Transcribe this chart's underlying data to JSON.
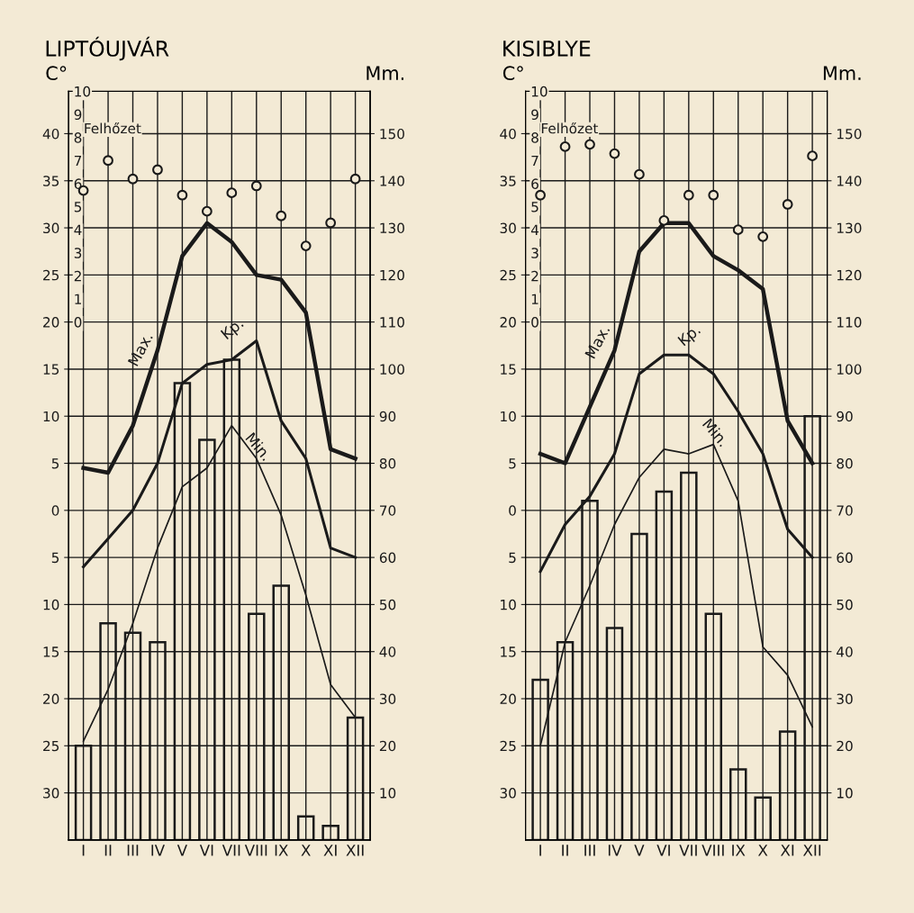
{
  "chart_data": [
    {
      "type": "line",
      "title": "LIPTÓUJVÁR",
      "ylabel": "C°",
      "y2label": "Mm.",
      "categories": [
        "I",
        "II",
        "III",
        "IV",
        "V",
        "VI",
        "VII",
        "VIII",
        "IX",
        "X",
        "XI",
        "XII"
      ],
      "ylim": [
        -35,
        44.5
      ],
      "yticks": [
        {
          "value": -30,
          "label": "30"
        },
        {
          "value": -25,
          "label": "25"
        },
        {
          "value": -20,
          "label": "20"
        },
        {
          "value": -15,
          "label": "15"
        },
        {
          "value": -10,
          "label": "10"
        },
        {
          "value": -5,
          "label": "5"
        },
        0,
        5,
        10,
        15,
        20,
        25,
        30,
        35,
        40
      ],
      "y2lim": [
        0,
        159
      ],
      "y2ticks": [
        10,
        20,
        30,
        40,
        50,
        60,
        70,
        80,
        90,
        100,
        110,
        120,
        130,
        140,
        150
      ],
      "y3lim": [
        -22.45,
        10
      ],
      "y3ticks": [
        0,
        1,
        2,
        3,
        4,
        5,
        6,
        7,
        8,
        9,
        10
      ],
      "grid": true,
      "legend": false,
      "series": [
        {
          "name": "Max.",
          "color": "#1a1a1a",
          "marker": "none",
          "values": [
            4.5,
            4,
            9,
            17,
            27,
            30.5,
            28.5,
            25,
            24.5,
            21,
            6.5,
            5.5
          ]
        },
        {
          "name": "Kp.",
          "color": "#1a1a1a",
          "marker": "none",
          "values": [
            -6,
            -3,
            0,
            5,
            13.5,
            15.5,
            16,
            18,
            9.5,
            5.5,
            -4,
            -5
          ]
        },
        {
          "name": "Min.",
          "color": "#1a1a1a",
          "marker": "none",
          "values": [
            -24.5,
            -19,
            -12,
            -4,
            2.5,
            4.5,
            9,
            5.5,
            -0.5,
            -9,
            -18.5,
            -22
          ]
        },
        {
          "type": "bar",
          "axis": "y2",
          "color": "#1a1a1a",
          "values": [
            20,
            46,
            44,
            42,
            97,
            85,
            102,
            48,
            54,
            5,
            3,
            26
          ]
        },
        {
          "name": "Felhőzet",
          "type": "scatter",
          "axis": "y3",
          "color": "#1a1a1a",
          "marker": "circle",
          "values": [
            5.7,
            7.0,
            6.2,
            6.6,
            5.5,
            4.8,
            5.6,
            5.9,
            4.6,
            3.3,
            4.3,
            6.2
          ]
        }
      ]
    },
    {
      "type": "line",
      "title": "KISIBLYE",
      "ylabel": "C°",
      "y2label": "Mm.",
      "categories": [
        "I",
        "II",
        "III",
        "IV",
        "V",
        "VI",
        "VII",
        "VIII",
        "IX",
        "X",
        "XI",
        "XII"
      ],
      "ylim": [
        -35,
        44.5
      ],
      "yticks": [
        {
          "value": -30,
          "label": "30"
        },
        {
          "value": -25,
          "label": "25"
        },
        {
          "value": -20,
          "label": "20"
        },
        {
          "value": -15,
          "label": "15"
        },
        {
          "value": -10,
          "label": "10"
        },
        {
          "value": -5,
          "label": "5"
        },
        0,
        5,
        10,
        15,
        20,
        25,
        30,
        35,
        40
      ],
      "y2lim": [
        0,
        159
      ],
      "y2ticks": [
        10,
        20,
        30,
        40,
        50,
        60,
        70,
        80,
        90,
        100,
        110,
        120,
        130,
        140,
        150
      ],
      "y3lim": [
        -22.45,
        10
      ],
      "y3ticks": [
        0,
        1,
        2,
        3,
        4,
        5,
        6,
        7,
        8,
        9,
        10
      ],
      "grid": true,
      "legend": false,
      "series": [
        {
          "name": "Max.",
          "color": "#1a1a1a",
          "marker": "none",
          "values": [
            6,
            5,
            11,
            17,
            27.5,
            30.5,
            30.5,
            27,
            25.5,
            23.5,
            9.5,
            5
          ]
        },
        {
          "name": "Kp.",
          "color": "#1a1a1a",
          "marker": "none",
          "values": [
            -6.5,
            -1.5,
            1.5,
            6,
            14.5,
            16.5,
            16.5,
            14.5,
            10.5,
            6,
            -2,
            -5
          ]
        },
        {
          "name": "Min.",
          "color": "#1a1a1a",
          "marker": "none",
          "values": [
            -25,
            -14,
            -8,
            -1.5,
            3.5,
            6.5,
            6,
            7,
            1,
            -14.5,
            -17.5,
            -23
          ]
        },
        {
          "type": "bar",
          "axis": "y2",
          "color": "#1a1a1a",
          "values": [
            34,
            42,
            72,
            45,
            65,
            74,
            78,
            48,
            15,
            9,
            23,
            90
          ]
        },
        {
          "name": "Felhőzet",
          "type": "scatter",
          "axis": "y3",
          "color": "#1a1a1a",
          "marker": "circle",
          "values": [
            5.5,
            7.6,
            7.7,
            7.3,
            6.4,
            4.4,
            5.5,
            5.5,
            4.0,
            3.7,
            5.1,
            7.2
          ]
        }
      ]
    }
  ]
}
